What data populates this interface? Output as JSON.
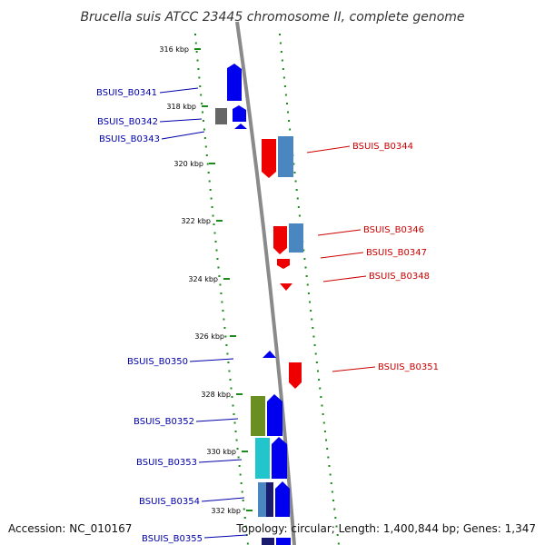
{
  "title": "Brucella suis ATCC 23445 chromosome II, complete genome",
  "footer": {
    "accession": "Accession: NC_010167",
    "summary": "Topology: circular; Length: 1,400,844 bp; Genes: 1,347"
  },
  "colors": {
    "forward_gene": "#0000ee",
    "reverse_gene": "#ee0000",
    "backbone": "#8a8a8a",
    "gc_ticks": "#1a8a1a",
    "cds_light_blue": "#4a86c0",
    "rna_grey": "#666666",
    "olive": "#6b8e23",
    "cyan": "#22c5cc",
    "dark_navy": "#1a1a6e"
  },
  "ticks": [
    {
      "label": "316 kbp"
    },
    {
      "label": "318 kbp"
    },
    {
      "label": "320 kbp"
    },
    {
      "label": "322 kbp"
    },
    {
      "label": "324 kbp"
    },
    {
      "label": "326 kbp"
    },
    {
      "label": "328 kbp"
    },
    {
      "label": "330 kbp"
    },
    {
      "label": "332 kbp"
    }
  ],
  "genes_left": [
    {
      "label": "BSUIS_B0341"
    },
    {
      "label": "BSUIS_B0342"
    },
    {
      "label": "BSUIS_B0343"
    },
    {
      "label": "BSUIS_B0350"
    },
    {
      "label": "BSUIS_B0352"
    },
    {
      "label": "BSUIS_B0353"
    },
    {
      "label": "BSUIS_B0354"
    },
    {
      "label": "BSUIS_B0355"
    }
  ],
  "genes_right": [
    {
      "label": "BSUIS_B0344"
    },
    {
      "label": "BSUIS_B0346"
    },
    {
      "label": "BSUIS_B0347"
    },
    {
      "label": "BSUIS_B0348"
    },
    {
      "label": "BSUIS_B0351"
    }
  ]
}
